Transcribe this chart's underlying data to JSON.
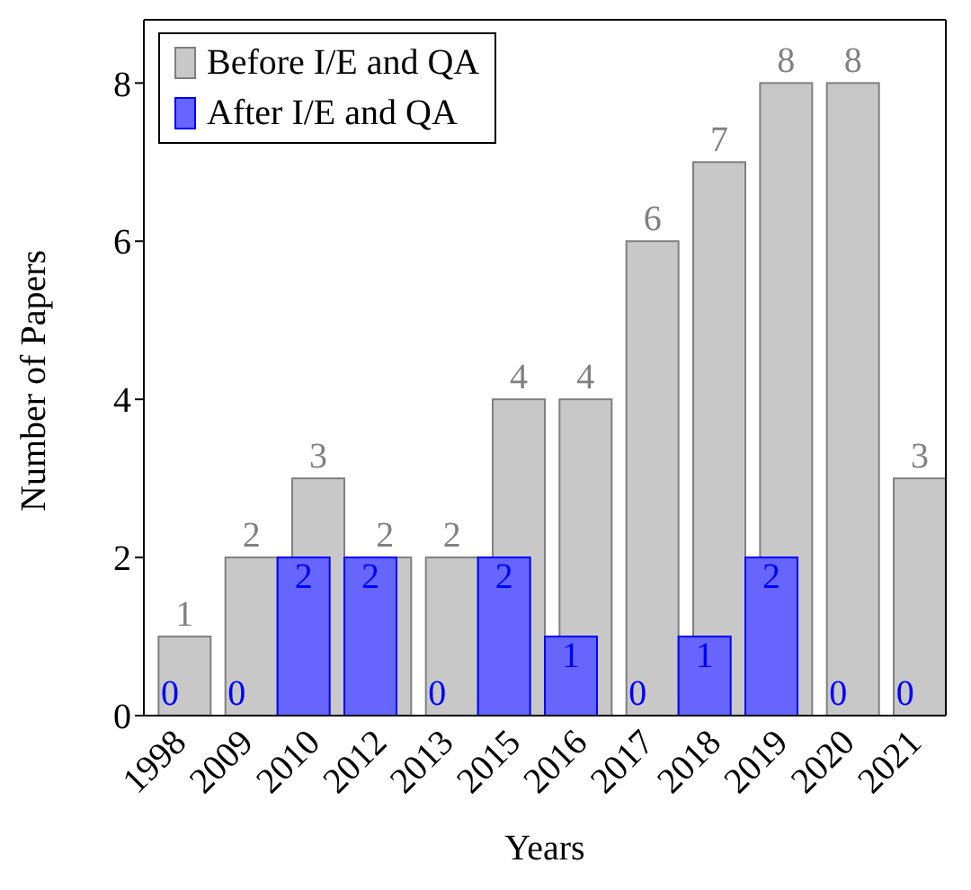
{
  "chart_data": {
    "type": "bar",
    "xlabel": "Years",
    "ylabel": "Number of Papers",
    "categories": [
      "1998",
      "2009",
      "2010",
      "2012",
      "2013",
      "2015",
      "2016",
      "2017",
      "2018",
      "2019",
      "2020",
      "2021"
    ],
    "series": [
      {
        "name": "Before I/E and QA",
        "color": "#c8c8c8",
        "values": [
          1,
          2,
          3,
          2,
          2,
          4,
          4,
          6,
          7,
          8,
          8,
          3
        ]
      },
      {
        "name": "After I/E and QA",
        "color": "#6666ff",
        "values": [
          0,
          0,
          2,
          2,
          0,
          2,
          1,
          0,
          1,
          2,
          0,
          0
        ]
      }
    ],
    "ylim": [
      0,
      8.8
    ],
    "yticks": [
      0,
      2,
      4,
      6,
      8
    ],
    "data_labels": true,
    "legend": "top left",
    "grid": false
  }
}
